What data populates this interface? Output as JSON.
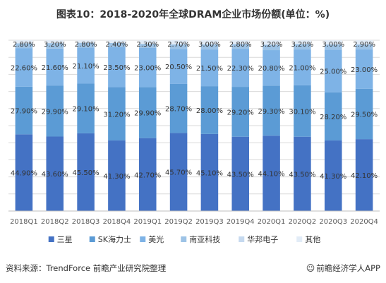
{
  "title": "图表10：2018-2020年全球DRAM企业市场份额(单位：%)",
  "source": "资料来源：TrendForce 前瞻产业研究院整理",
  "brand": {
    "icon": "smile-icon",
    "text": "前瞻经济学人APP"
  },
  "chart_data": {
    "type": "bar",
    "stacked": true,
    "categories": [
      "2018Q1",
      "2018Q2",
      "2018Q3",
      "2018Q4",
      "2019Q1",
      "2019Q2",
      "2019Q3",
      "2019Q4",
      "2020Q1",
      "2020Q2",
      "2020Q3",
      "2020Q4"
    ],
    "series": [
      {
        "name": "三星",
        "color": "#4472c4",
        "values": [
          44.9,
          43.6,
          45.5,
          41.3,
          42.7,
          45.7,
          45.1,
          43.5,
          44.1,
          43.5,
          41.3,
          42.1
        ],
        "labels": [
          "44.90%",
          "43.60%",
          "45.50%",
          "41.30%",
          "42.70%",
          "45.70%",
          "45.10%",
          "43.50%",
          "44.10%",
          "43.50%",
          "41.30%",
          "42.10%"
        ]
      },
      {
        "name": "SK海力士",
        "color": "#5b9bd5",
        "values": [
          27.9,
          29.9,
          29.1,
          31.2,
          29.9,
          28.7,
          28.0,
          29.2,
          29.3,
          30.1,
          28.2,
          29.5
        ],
        "labels": [
          "27.90%",
          "29.90%",
          "29.10%",
          "31.20%",
          "29.90%",
          "28.70%",
          "28.00%",
          "29.20%",
          "29.30%",
          "30.10%",
          "28.20%",
          "29.50%"
        ]
      },
      {
        "name": "美光",
        "color": "#7eb3e6",
        "values": [
          22.6,
          21.6,
          21.1,
          23.5,
          23.0,
          20.5,
          21.5,
          22.3,
          20.8,
          21.0,
          25.0,
          23.0
        ],
        "labels": [
          "22.60%",
          "21.60%",
          "21.10%",
          "23.50%",
          "23.00%",
          "20.50%",
          "21.50%",
          "22.30%",
          "20.80%",
          "21.00%",
          "25.00%",
          "23.00%"
        ]
      },
      {
        "name": "南亚科技",
        "color": "#9dc3e6",
        "values": [
          2.8,
          3.2,
          2.8,
          2.4,
          2.3,
          2.7,
          3.0,
          2.8,
          3.2,
          3.2,
          3.0,
          2.9
        ],
        "labels": [
          "2.80%",
          "3.20%",
          "2.80%",
          "2.40%",
          "2.30%",
          "2.70%",
          "3.00%",
          "2.80%",
          "3.20%",
          "3.20%",
          "3.00%",
          "2.90%"
        ]
      },
      {
        "name": "华邦电子",
        "color": "#c5d9ef",
        "values": [
          0,
          0,
          0,
          0,
          0,
          0,
          0,
          0,
          0,
          0,
          0,
          0
        ],
        "labels": []
      },
      {
        "name": "其他",
        "color": "#e2ecf7",
        "values": [
          0,
          0,
          0,
          0,
          0,
          0,
          0,
          0,
          0,
          0,
          0,
          0
        ],
        "labels": []
      }
    ],
    "ylim": [
      0,
      100
    ],
    "grid": true,
    "legend": "bottom"
  }
}
